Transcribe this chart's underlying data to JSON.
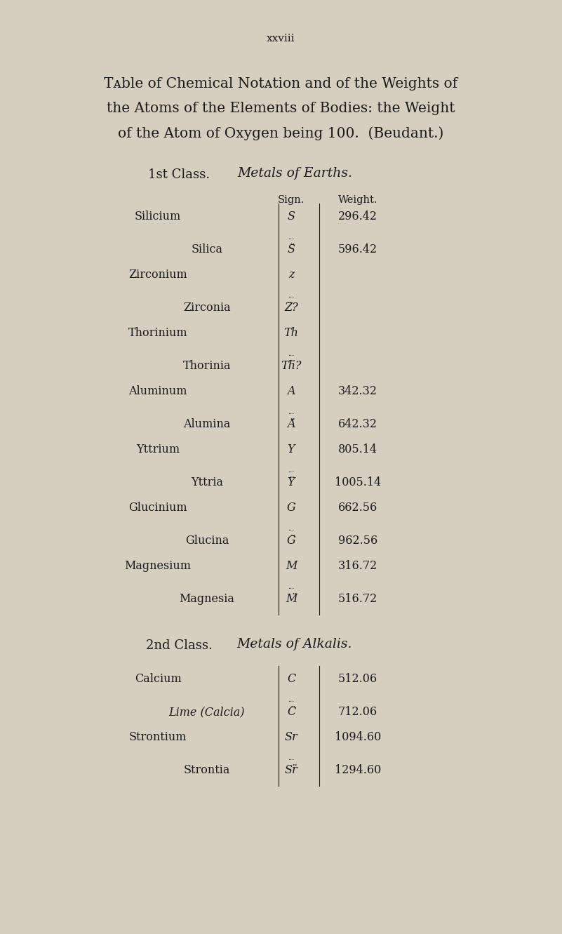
{
  "bg_color": "#d6cfc0",
  "page_number": "xxviii",
  "title_lines": [
    "Tᴀble of Chemical Notᴀtion and of the Weights of",
    "the Atoms of the Elements of Bodies: the Weight",
    "of the Atom of Oxygen being 100.  (Beudant.)"
  ],
  "class1_header": "1st Class.",
  "class1_italic": "Metals of Earths.",
  "col_sign": "Sign.",
  "col_weight": "Weight.",
  "rows": [
    {
      "name": "Silicium",
      "name_style": "smallcaps",
      "sign": "S",
      "sign_dots": false,
      "weight": "296.42"
    },
    {
      "name": "Silica",
      "name_style": "normal",
      "sign": "S̈",
      "sign_dots": true,
      "weight": "596.42"
    },
    {
      "name": "Zirconium",
      "name_style": "smallcaps",
      "sign": "z",
      "sign_dots": false,
      "weight": ""
    },
    {
      "name": "Zirconia",
      "name_style": "normal",
      "sign": "Z̈?",
      "sign_dots": true,
      "weight": ""
    },
    {
      "name": "Thorinium",
      "name_style": "smallcaps",
      "sign": "Th",
      "sign_dots": false,
      "weight": ""
    },
    {
      "name": "Thorinia",
      "name_style": "normal",
      "sign": "Tḧ?",
      "sign_dots": true,
      "weight": ""
    },
    {
      "name": "Aluminum",
      "name_style": "smallcaps",
      "sign": "A",
      "sign_dots": false,
      "weight": "342.32"
    },
    {
      "name": "Alumina",
      "name_style": "normal",
      "sign": "Ä",
      "sign_dots": true,
      "weight": "642.32"
    },
    {
      "name": "Yttrium",
      "name_style": "smallcaps",
      "sign": "Y",
      "sign_dots": false,
      "weight": "805.14"
    },
    {
      "name": "Yttria",
      "name_style": "normal",
      "sign": "Ÿ",
      "sign_dots": true,
      "weight": "1005.14"
    },
    {
      "name": "Glucinium",
      "name_style": "smallcaps",
      "sign": "G",
      "sign_dots": false,
      "weight": "662.56"
    },
    {
      "name": "Glucina",
      "name_style": "normal",
      "sign": "G̈",
      "sign_dots": true,
      "weight": "962.56"
    },
    {
      "name": "Magnesium",
      "name_style": "smallcaps",
      "sign": "M",
      "sign_dots": false,
      "weight": "316.72"
    },
    {
      "name": "Magnesia",
      "name_style": "normal",
      "sign": "M̈",
      "sign_dots": true,
      "weight": "516.72"
    }
  ],
  "class2_header": "2nd Class.",
  "class2_italic": "Metals of Alkalis.",
  "rows2": [
    {
      "name": "Calcium",
      "name_style": "smallcaps",
      "sign": "C",
      "sign_dots": false,
      "weight": "512.06"
    },
    {
      "name": "Lime (Calcia)",
      "name_style": "normal_italic",
      "sign": "C̈",
      "sign_dots": true,
      "weight": "712.06"
    },
    {
      "name": "Strontium",
      "name_style": "smallcaps",
      "sign": "Sr",
      "sign_dots": false,
      "weight": "1094.60"
    },
    {
      "name": "Strontia",
      "name_style": "normal",
      "sign": "Sr̈",
      "sign_dots": true,
      "weight": "1294.60"
    }
  ]
}
